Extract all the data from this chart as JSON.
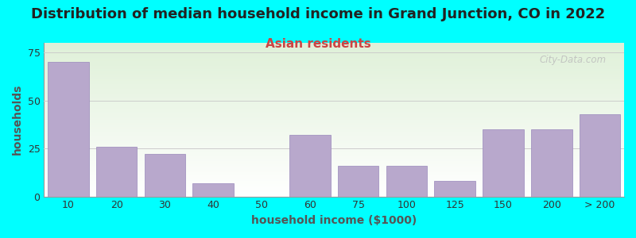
{
  "title": "Distribution of median household income in Grand Junction, CO in 2022",
  "subtitle": "Asian residents",
  "xlabel": "household income ($1000)",
  "ylabel": "households",
  "background_color": "#00FFFF",
  "plot_bg_top": "#dff0d8",
  "plot_bg_bottom": "#ffffff",
  "bar_color": "#b8a8cc",
  "bar_edge_color": "#9988bb",
  "categories": [
    "10",
    "20",
    "30",
    "40",
    "50",
    "60",
    "75",
    "100",
    "125",
    "150",
    "200",
    "> 200"
  ],
  "values": [
    70,
    26,
    22,
    7,
    0,
    32,
    16,
    16,
    8,
    35,
    35,
    43
  ],
  "ylim": [
    0,
    80
  ],
  "yticks": [
    0,
    25,
    50,
    75
  ],
  "title_fontsize": 13,
  "subtitle_fontsize": 11,
  "axis_label_fontsize": 10,
  "tick_fontsize": 9,
  "watermark_text": "City-Data.com",
  "grid_color": "#cccccc",
  "title_color": "#222222",
  "subtitle_color": "#cc4444",
  "axis_label_color": "#555555"
}
